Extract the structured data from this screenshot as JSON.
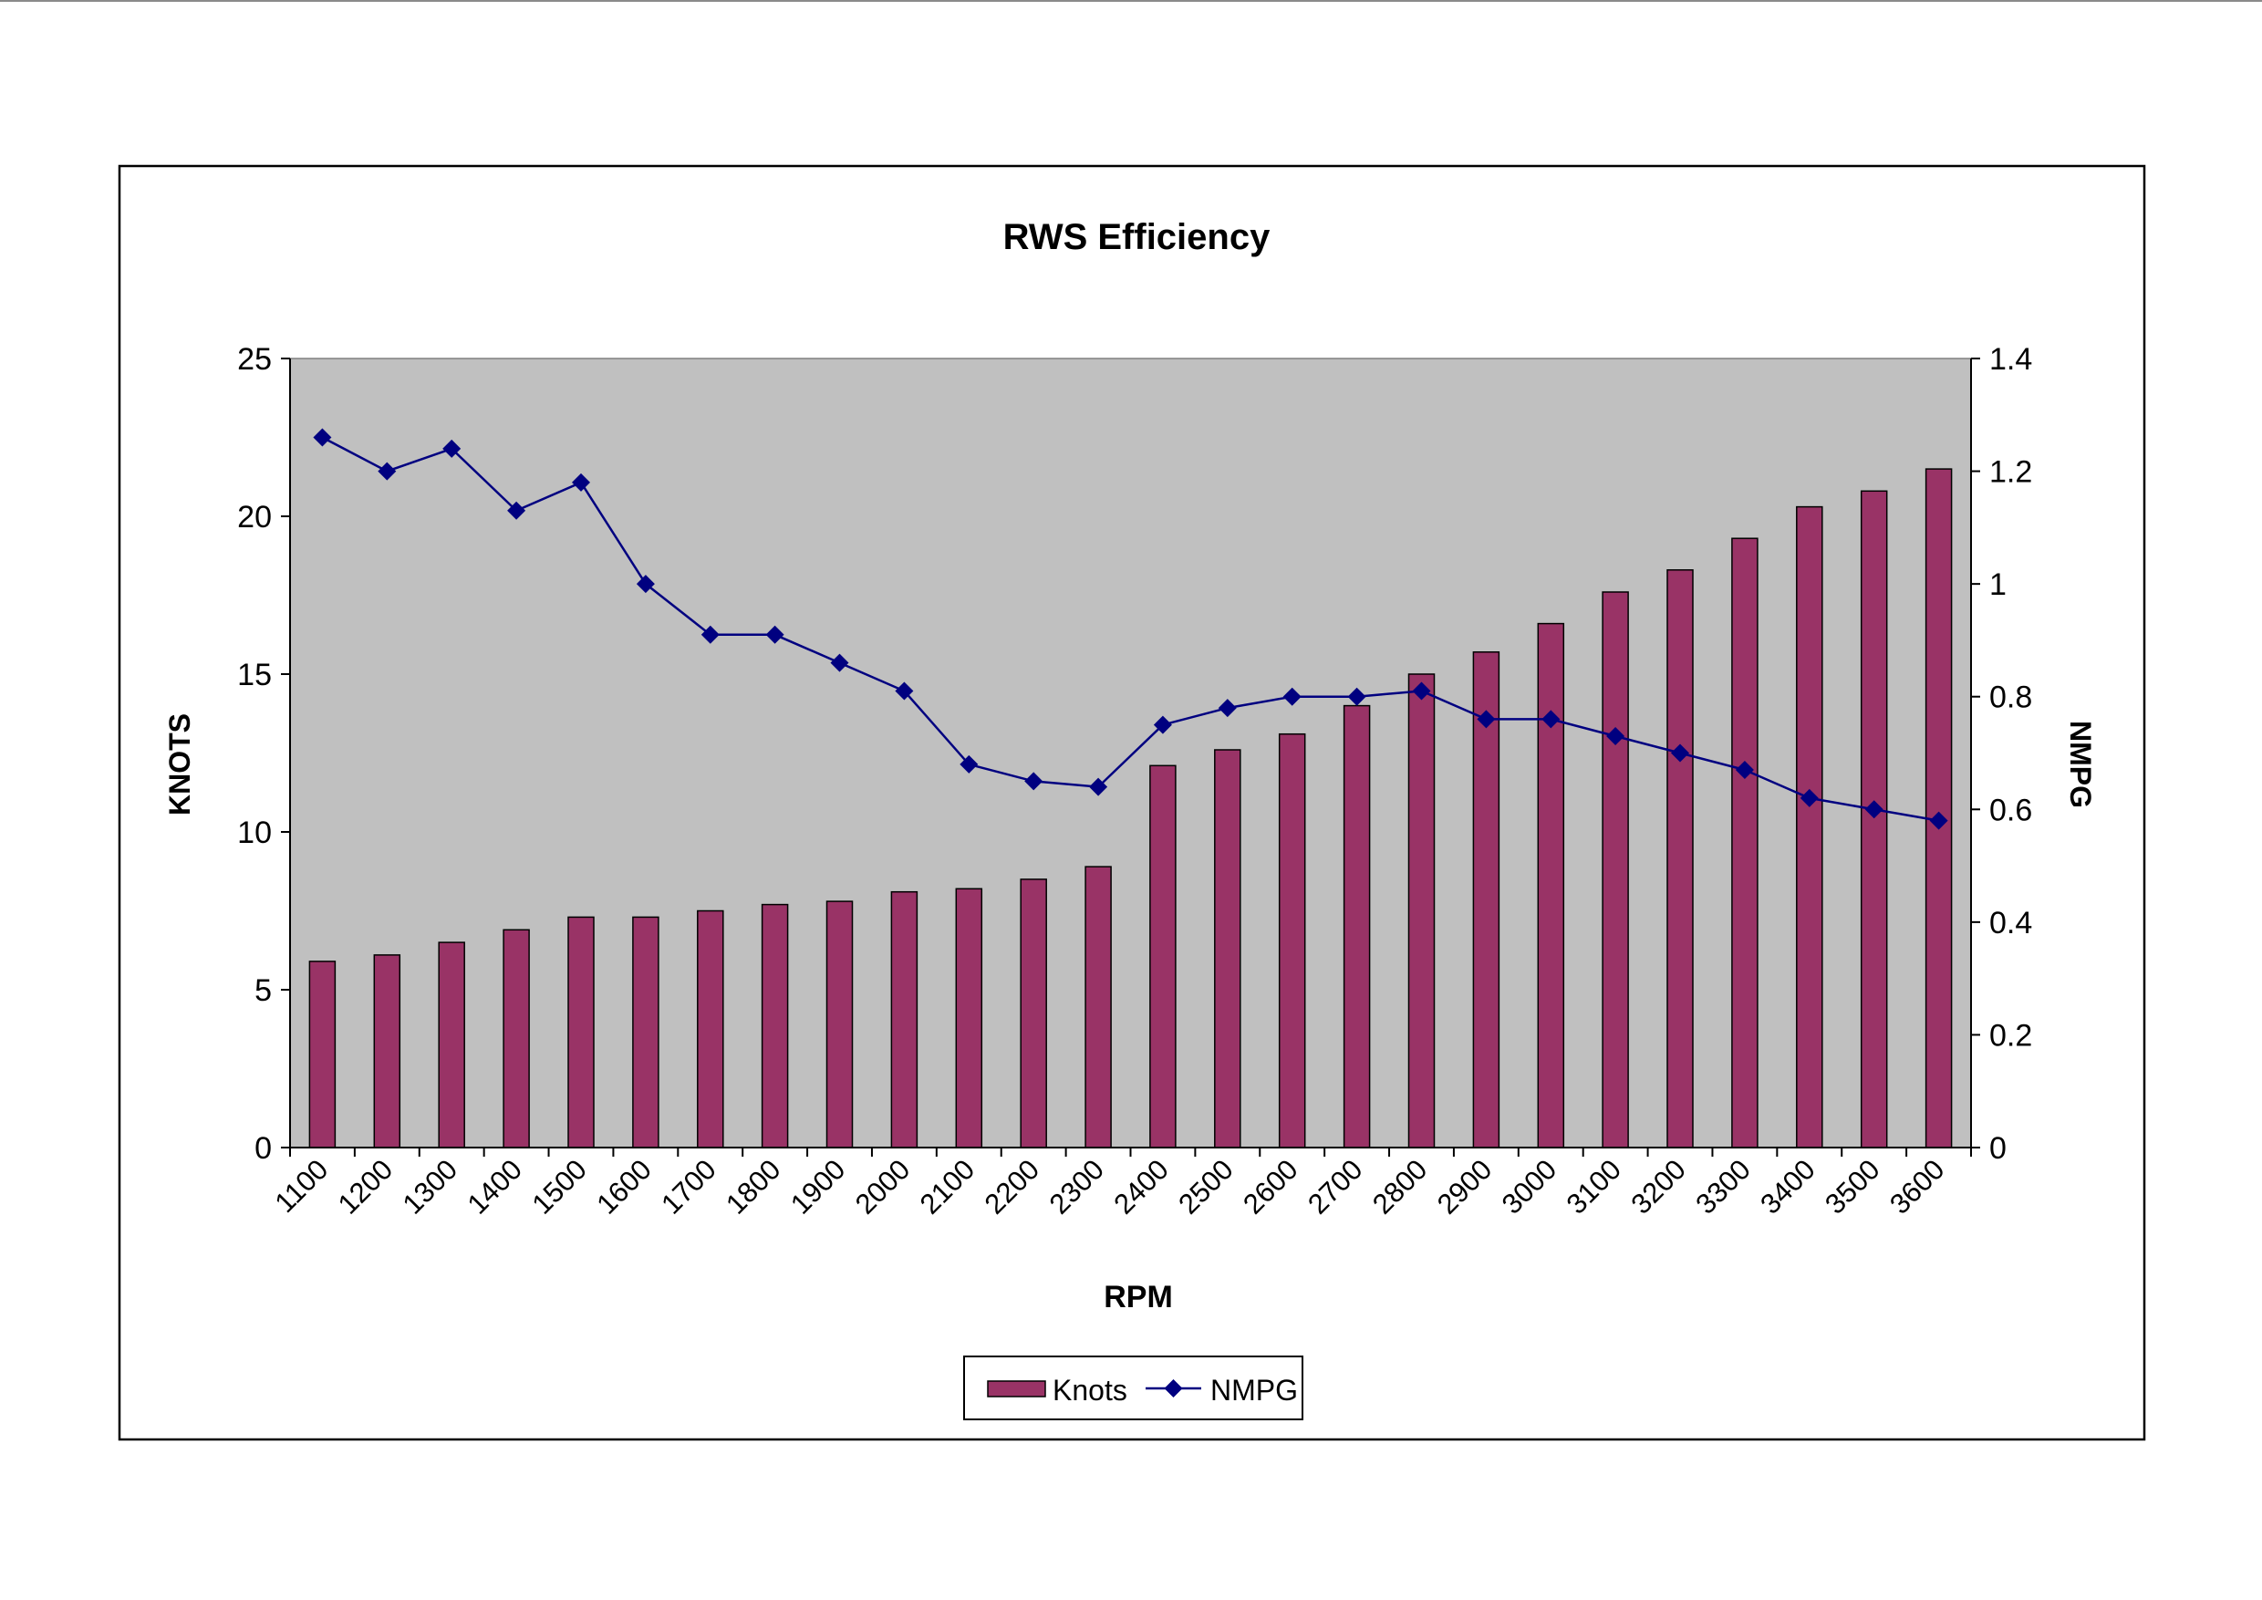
{
  "chart_data": {
    "type": "bar+line",
    "title": "RWS Efficiency",
    "xlabel": "RPM",
    "ylabel_left": "KNOTS",
    "ylabel_right": "NMPG",
    "categories": [
      "1100",
      "1200",
      "1300",
      "1400",
      "1500",
      "1600",
      "1700",
      "1800",
      "1900",
      "2000",
      "2100",
      "2200",
      "2300",
      "2400",
      "2500",
      "2600",
      "2700",
      "2800",
      "2900",
      "3000",
      "3100",
      "3200",
      "3300",
      "3400",
      "3500",
      "3600"
    ],
    "ylim_left": [
      0,
      25
    ],
    "yticks_left": [
      0,
      5,
      10,
      15,
      20,
      25
    ],
    "ylim_right": [
      0,
      1.4
    ],
    "yticks_right": [
      "0",
      "0.2",
      "0.4",
      "0.6",
      "0.8",
      "1",
      "1.2",
      "1.4"
    ],
    "series": [
      {
        "name": "Knots",
        "type": "bar",
        "axis": "left",
        "color": "#993366",
        "values": [
          5.9,
          6.1,
          6.5,
          6.9,
          7.3,
          7.3,
          7.5,
          7.7,
          7.8,
          8.1,
          8.2,
          8.5,
          8.9,
          12.1,
          12.6,
          13.1,
          14.0,
          15.0,
          15.7,
          16.6,
          17.6,
          18.3,
          19.3,
          20.3,
          20.8,
          21.5
        ]
      },
      {
        "name": "NMPG",
        "type": "line",
        "axis": "right",
        "color": "#000080",
        "marker": "diamond",
        "values": [
          1.26,
          1.2,
          1.24,
          1.13,
          1.18,
          1.0,
          0.91,
          0.91,
          0.86,
          0.81,
          0.68,
          0.65,
          0.64,
          0.75,
          0.78,
          0.8,
          0.8,
          0.81,
          0.76,
          0.76,
          0.73,
          0.7,
          0.67,
          0.62,
          0.6,
          0.58
        ]
      }
    ],
    "plot_background": "#c0c0c0",
    "grid": false,
    "legend_position": "bottom"
  }
}
